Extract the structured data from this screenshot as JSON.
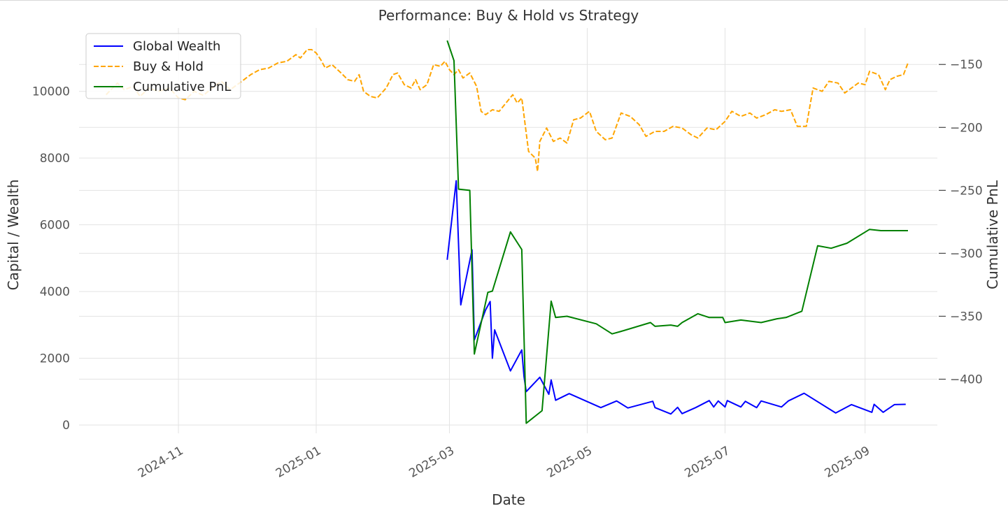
{
  "chart_data": {
    "type": "line",
    "title": "Performance: Buy & Hold vs Strategy",
    "xlabel": "Date",
    "ylabel_left": "Capital / Wealth",
    "ylabel_right": "Cumulative PnL",
    "x_ticks": [
      "2024-11",
      "2025-01",
      "2025-03",
      "2025-05",
      "2025-07",
      "2025-09"
    ],
    "x_ticks_dates": [
      "2024-11-01",
      "2025-01-01",
      "2025-03-01",
      "2025-05-01",
      "2025-07-01",
      "2025-09-01"
    ],
    "xlim": [
      "2024-09-18",
      "2025-10-03"
    ],
    "y_left_ticks": [
      0,
      2000,
      4000,
      6000,
      8000,
      10000
    ],
    "y_left_lim": [
      -250,
      11900
    ],
    "y_right_ticks": [
      -150,
      -200,
      -250,
      -300,
      -350,
      -400
    ],
    "y_right_lim": [
      -443,
      -121
    ],
    "grid": true,
    "legend_position": "top-left",
    "legend": [
      "Global Wealth",
      "Buy & Hold",
      "Cumulative PnL"
    ],
    "series": [
      {
        "name": "Global Wealth",
        "axis": "left",
        "color": "#0000ff",
        "style": "solid",
        "points": [
          [
            "2025-02-28",
            4950
          ],
          [
            "2025-03-04",
            7320
          ],
          [
            "2025-03-06",
            3600
          ],
          [
            "2025-03-11",
            5250
          ],
          [
            "2025-03-12",
            2550
          ],
          [
            "2025-03-17",
            3450
          ],
          [
            "2025-03-19",
            3700
          ],
          [
            "2025-03-20",
            2000
          ],
          [
            "2025-03-21",
            2850
          ],
          [
            "2025-03-28",
            1620
          ],
          [
            "2025-04-02",
            2250
          ],
          [
            "2025-04-03",
            1450
          ],
          [
            "2025-04-04",
            1000
          ],
          [
            "2025-04-10",
            1430
          ],
          [
            "2025-04-14",
            920
          ],
          [
            "2025-04-15",
            1350
          ],
          [
            "2025-04-17",
            740
          ],
          [
            "2025-04-23",
            940
          ],
          [
            "2025-05-07",
            520
          ],
          [
            "2025-05-14",
            720
          ],
          [
            "2025-05-19",
            510
          ],
          [
            "2025-05-30",
            710
          ],
          [
            "2025-05-31",
            520
          ],
          [
            "2025-06-07",
            330
          ],
          [
            "2025-06-10",
            530
          ],
          [
            "2025-06-12",
            340
          ],
          [
            "2025-06-18",
            520
          ],
          [
            "2025-06-24",
            730
          ],
          [
            "2025-06-26",
            540
          ],
          [
            "2025-06-28",
            720
          ],
          [
            "2025-07-01",
            540
          ],
          [
            "2025-07-02",
            730
          ],
          [
            "2025-07-08",
            540
          ],
          [
            "2025-07-10",
            710
          ],
          [
            "2025-07-15",
            520
          ],
          [
            "2025-07-17",
            720
          ],
          [
            "2025-07-26",
            540
          ],
          [
            "2025-07-29",
            720
          ],
          [
            "2025-08-05",
            950
          ],
          [
            "2025-08-19",
            360
          ],
          [
            "2025-08-26",
            610
          ],
          [
            "2025-09-04",
            380
          ],
          [
            "2025-09-05",
            620
          ],
          [
            "2025-09-09",
            380
          ],
          [
            "2025-09-14",
            610
          ],
          [
            "2025-09-19",
            620
          ]
        ]
      },
      {
        "name": "Buy & Hold",
        "axis": "left",
        "color": "#ffa500",
        "style": "dashed",
        "points": [
          [
            "2024-09-30",
            9900
          ],
          [
            "2024-10-05",
            10250
          ],
          [
            "2024-10-08",
            10050
          ],
          [
            "2024-10-12",
            10150
          ],
          [
            "2024-10-15",
            9850
          ],
          [
            "2024-10-19",
            10100
          ],
          [
            "2024-10-23",
            10000
          ],
          [
            "2024-10-28",
            10100
          ],
          [
            "2024-11-01",
            9800
          ],
          [
            "2024-11-04",
            9750
          ],
          [
            "2024-11-08",
            10000
          ],
          [
            "2024-11-12",
            9880
          ],
          [
            "2024-11-16",
            10100
          ],
          [
            "2024-11-20",
            10300
          ],
          [
            "2024-11-24",
            10050
          ],
          [
            "2024-11-28",
            10250
          ],
          [
            "2024-12-03",
            10500
          ],
          [
            "2024-12-07",
            10650
          ],
          [
            "2024-12-11",
            10700
          ],
          [
            "2024-12-15",
            10850
          ],
          [
            "2024-12-19",
            10900
          ],
          [
            "2024-12-23",
            11100
          ],
          [
            "2024-12-25",
            11000
          ],
          [
            "2024-12-28",
            11250
          ],
          [
            "2024-12-30",
            11250
          ],
          [
            "2025-01-01",
            11150
          ],
          [
            "2025-01-03",
            10950
          ],
          [
            "2025-01-05",
            10700
          ],
          [
            "2025-01-08",
            10800
          ],
          [
            "2025-01-12",
            10550
          ],
          [
            "2025-01-15",
            10350
          ],
          [
            "2025-01-18",
            10300
          ],
          [
            "2025-01-20",
            10500
          ],
          [
            "2025-01-22",
            10000
          ],
          [
            "2025-01-25",
            9850
          ],
          [
            "2025-01-28",
            9800
          ],
          [
            "2025-02-01",
            10100
          ],
          [
            "2025-02-04",
            10500
          ],
          [
            "2025-02-06",
            10550
          ],
          [
            "2025-02-09",
            10200
          ],
          [
            "2025-02-12",
            10100
          ],
          [
            "2025-02-14",
            10350
          ],
          [
            "2025-02-16",
            10050
          ],
          [
            "2025-02-19",
            10200
          ],
          [
            "2025-02-22",
            10800
          ],
          [
            "2025-02-25",
            10750
          ],
          [
            "2025-02-27",
            10900
          ],
          [
            "2025-03-01",
            10650
          ],
          [
            "2025-03-03",
            10500
          ],
          [
            "2025-03-05",
            10650
          ],
          [
            "2025-03-07",
            10400
          ],
          [
            "2025-03-10",
            10550
          ],
          [
            "2025-03-13",
            10150
          ],
          [
            "2025-03-15",
            9400
          ],
          [
            "2025-03-17",
            9300
          ],
          [
            "2025-03-20",
            9450
          ],
          [
            "2025-03-23",
            9400
          ],
          [
            "2025-03-26",
            9650
          ],
          [
            "2025-03-29",
            9900
          ],
          [
            "2025-03-31",
            9650
          ],
          [
            "2025-04-02",
            9800
          ],
          [
            "2025-04-05",
            8200
          ],
          [
            "2025-04-08",
            8000
          ],
          [
            "2025-04-09",
            7600
          ],
          [
            "2025-04-10",
            8500
          ],
          [
            "2025-04-13",
            8900
          ],
          [
            "2025-04-16",
            8500
          ],
          [
            "2025-04-19",
            8600
          ],
          [
            "2025-04-22",
            8450
          ],
          [
            "2025-04-25",
            9150
          ],
          [
            "2025-04-28",
            9200
          ],
          [
            "2025-05-02",
            9400
          ],
          [
            "2025-05-05",
            8800
          ],
          [
            "2025-05-09",
            8550
          ],
          [
            "2025-05-12",
            8600
          ],
          [
            "2025-05-16",
            9350
          ],
          [
            "2025-05-20",
            9250
          ],
          [
            "2025-05-24",
            9000
          ],
          [
            "2025-05-27",
            8650
          ],
          [
            "2025-05-31",
            8800
          ],
          [
            "2025-06-04",
            8800
          ],
          [
            "2025-06-08",
            8950
          ],
          [
            "2025-06-12",
            8900
          ],
          [
            "2025-06-16",
            8700
          ],
          [
            "2025-06-19",
            8600
          ],
          [
            "2025-06-23",
            8900
          ],
          [
            "2025-06-27",
            8850
          ],
          [
            "2025-07-01",
            9100
          ],
          [
            "2025-07-04",
            9400
          ],
          [
            "2025-07-08",
            9250
          ],
          [
            "2025-07-12",
            9350
          ],
          [
            "2025-07-15",
            9200
          ],
          [
            "2025-07-19",
            9300
          ],
          [
            "2025-07-23",
            9450
          ],
          [
            "2025-07-26",
            9400
          ],
          [
            "2025-07-30",
            9450
          ],
          [
            "2025-08-02",
            8950
          ],
          [
            "2025-08-06",
            8950
          ],
          [
            "2025-08-09",
            10100
          ],
          [
            "2025-08-13",
            10000
          ],
          [
            "2025-08-16",
            10300
          ],
          [
            "2025-08-20",
            10250
          ],
          [
            "2025-08-23",
            9950
          ],
          [
            "2025-08-26",
            10100
          ],
          [
            "2025-08-29",
            10250
          ],
          [
            "2025-09-01",
            10200
          ],
          [
            "2025-09-03",
            10600
          ],
          [
            "2025-09-07",
            10500
          ],
          [
            "2025-09-10",
            10050
          ],
          [
            "2025-09-12",
            10350
          ],
          [
            "2025-09-15",
            10450
          ],
          [
            "2025-09-18",
            10500
          ],
          [
            "2025-09-20",
            10850
          ]
        ]
      },
      {
        "name": "Cumulative PnL",
        "axis": "right",
        "color": "#008000",
        "style": "solid",
        "points": [
          [
            "2025-02-28",
            -131
          ],
          [
            "2025-03-03",
            -147
          ],
          [
            "2025-03-05",
            -249
          ],
          [
            "2025-03-10",
            -250
          ],
          [
            "2025-03-12",
            -380
          ],
          [
            "2025-03-18",
            -331
          ],
          [
            "2025-03-20",
            -330
          ],
          [
            "2025-03-28",
            -283
          ],
          [
            "2025-04-02",
            -297
          ],
          [
            "2025-04-04",
            -435
          ],
          [
            "2025-04-11",
            -425
          ],
          [
            "2025-04-15",
            -338
          ],
          [
            "2025-04-17",
            -351
          ],
          [
            "2025-04-22",
            -350
          ],
          [
            "2025-05-05",
            -356
          ],
          [
            "2025-05-12",
            -364
          ],
          [
            "2025-05-16",
            -362
          ],
          [
            "2025-05-29",
            -355
          ],
          [
            "2025-05-31",
            -358
          ],
          [
            "2025-06-07",
            -357
          ],
          [
            "2025-06-10",
            -358
          ],
          [
            "2025-06-12",
            -355
          ],
          [
            "2025-06-19",
            -348
          ],
          [
            "2025-06-24",
            -351
          ],
          [
            "2025-06-30",
            -351
          ],
          [
            "2025-07-01",
            -355
          ],
          [
            "2025-07-08",
            -353
          ],
          [
            "2025-07-17",
            -355
          ],
          [
            "2025-07-24",
            -352
          ],
          [
            "2025-07-28",
            -351
          ],
          [
            "2025-08-04",
            -346
          ],
          [
            "2025-08-11",
            -294
          ],
          [
            "2025-08-17",
            -296
          ],
          [
            "2025-08-24",
            -292
          ],
          [
            "2025-09-03",
            -281
          ],
          [
            "2025-09-08",
            -282
          ],
          [
            "2025-09-20",
            -282
          ]
        ]
      }
    ]
  }
}
